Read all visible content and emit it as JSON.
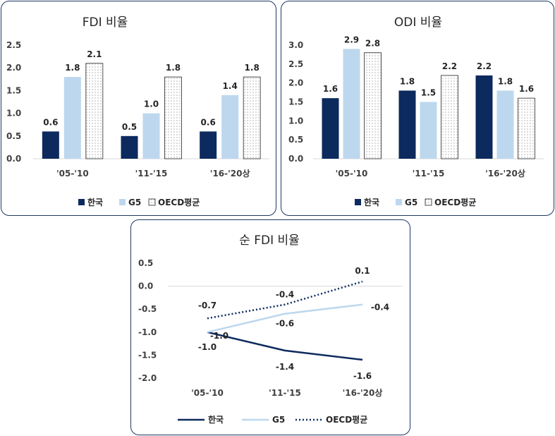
{
  "colors": {
    "korea": "#0d2a5e",
    "g5": "#bdd7ee",
    "oecd_fill": "#ffffff",
    "oecd_dot": "#7f7f7f",
    "panel_border": "#1f3864"
  },
  "chart_data": [
    {
      "type": "bar",
      "title": "FDI 비율",
      "categories": [
        "'05-'10",
        "'11-'15",
        "'16-'20상"
      ],
      "series": [
        {
          "name": "한국",
          "values": [
            0.6,
            0.5,
            0.6
          ]
        },
        {
          "name": "G5",
          "values": [
            1.8,
            1.0,
            1.4
          ]
        },
        {
          "name": "OECD평균",
          "values": [
            2.1,
            1.8,
            1.8
          ]
        }
      ],
      "yticks": [
        "0.0",
        "0.5",
        "1.0",
        "1.5",
        "2.0",
        "2.5"
      ],
      "ylim": [
        0,
        2.5
      ],
      "legend": "bottom"
    },
    {
      "type": "bar",
      "title": "ODI 비율",
      "categories": [
        "'05-'10",
        "'11-'15",
        "'16-'20상"
      ],
      "series": [
        {
          "name": "한국",
          "values": [
            1.6,
            1.8,
            2.2
          ]
        },
        {
          "name": "G5",
          "values": [
            2.9,
            1.5,
            1.8
          ]
        },
        {
          "name": "OECD평균",
          "values": [
            2.8,
            2.2,
            1.6
          ]
        }
      ],
      "yticks": [
        "0.0",
        "0.5",
        "1.0",
        "1.5",
        "2.0",
        "2.5",
        "3.0"
      ],
      "ylim": [
        0,
        3.0
      ],
      "legend": "bottom"
    },
    {
      "type": "line",
      "title": "순 FDI 비율",
      "categories": [
        "'05-'10",
        "'11-'15",
        "'16-'20상"
      ],
      "series": [
        {
          "name": "한국",
          "values": [
            -1.0,
            -1.4,
            -1.6
          ]
        },
        {
          "name": "G5",
          "values": [
            -1.0,
            -0.6,
            -0.4
          ]
        },
        {
          "name": "OECD평균",
          "values": [
            -0.7,
            -0.4,
            0.1
          ]
        }
      ],
      "yticks": [
        "-2.0",
        "-1.5",
        "-1.0",
        "-0.5",
        "0.0",
        "0.5"
      ],
      "ylim": [
        -2.0,
        0.5
      ],
      "legend": "bottom"
    }
  ]
}
